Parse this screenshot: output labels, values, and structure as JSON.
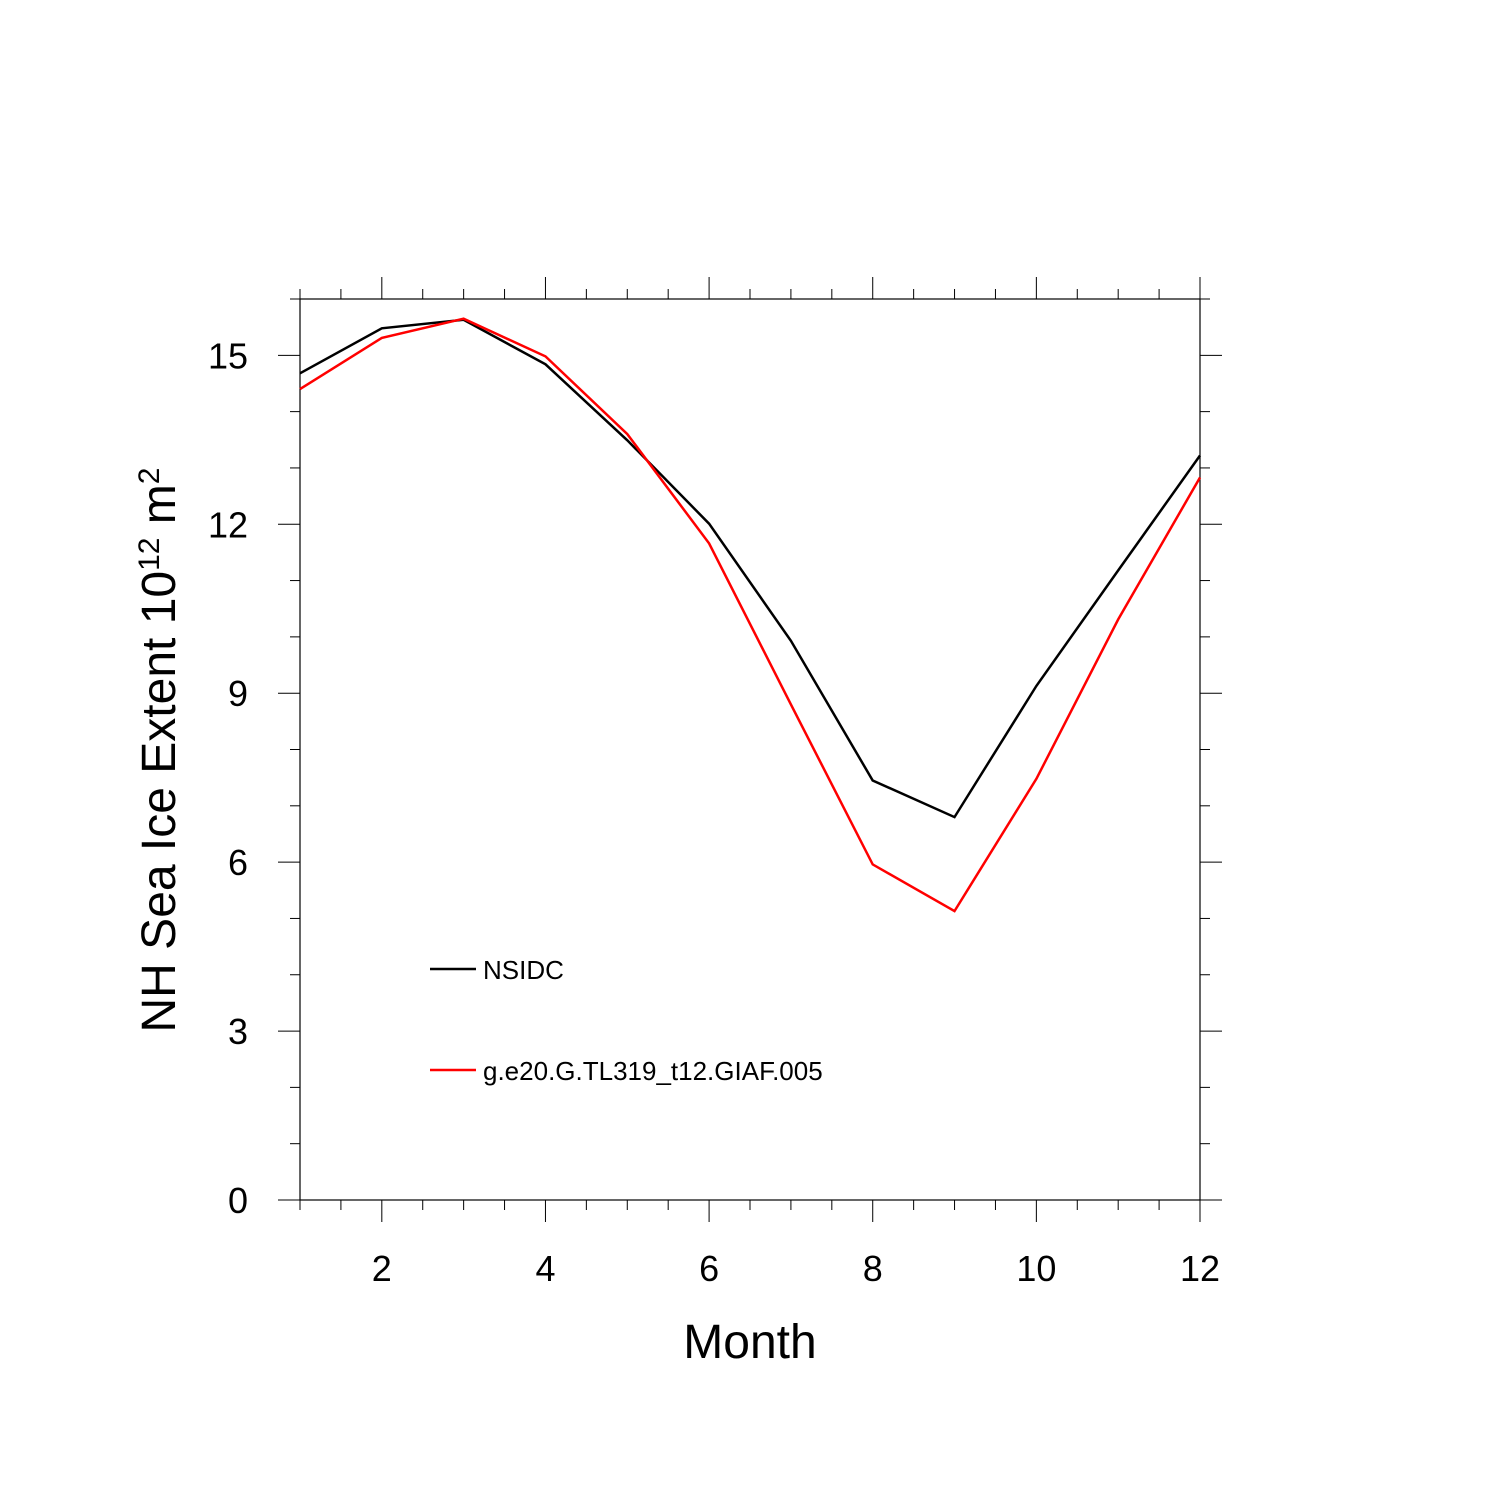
{
  "chart_data": {
    "type": "line",
    "title": "",
    "xlabel": "Month",
    "ylabel_main": "NH Sea Ice Extent 10",
    "ylabel_exp1": "12",
    "ylabel_mid": " m",
    "ylabel_exp2": "2",
    "xlim": [
      1,
      12
    ],
    "ylim": [
      0,
      16
    ],
    "x_ticks": [
      2,
      4,
      6,
      8,
      10,
      12
    ],
    "y_ticks": [
      0,
      3,
      6,
      9,
      12,
      15
    ],
    "grid": false,
    "legend_position": "inside, lower-left",
    "x": [
      1,
      2,
      3,
      4,
      5,
      6,
      7,
      8,
      9,
      10,
      11,
      12
    ],
    "series": [
      {
        "name": "NSIDC",
        "color": "#000000",
        "values": [
          14.68,
          15.48,
          15.63,
          14.84,
          13.49,
          12.01,
          9.93,
          7.45,
          6.8,
          9.13,
          11.18,
          13.22
        ]
      },
      {
        "name": "g.e20.G.TL319_t12.GIAF.005",
        "color": "#ff0000",
        "values": [
          14.4,
          15.31,
          15.65,
          14.98,
          13.6,
          11.66,
          8.8,
          5.96,
          5.13,
          7.48,
          10.31,
          12.83
        ]
      }
    ]
  }
}
